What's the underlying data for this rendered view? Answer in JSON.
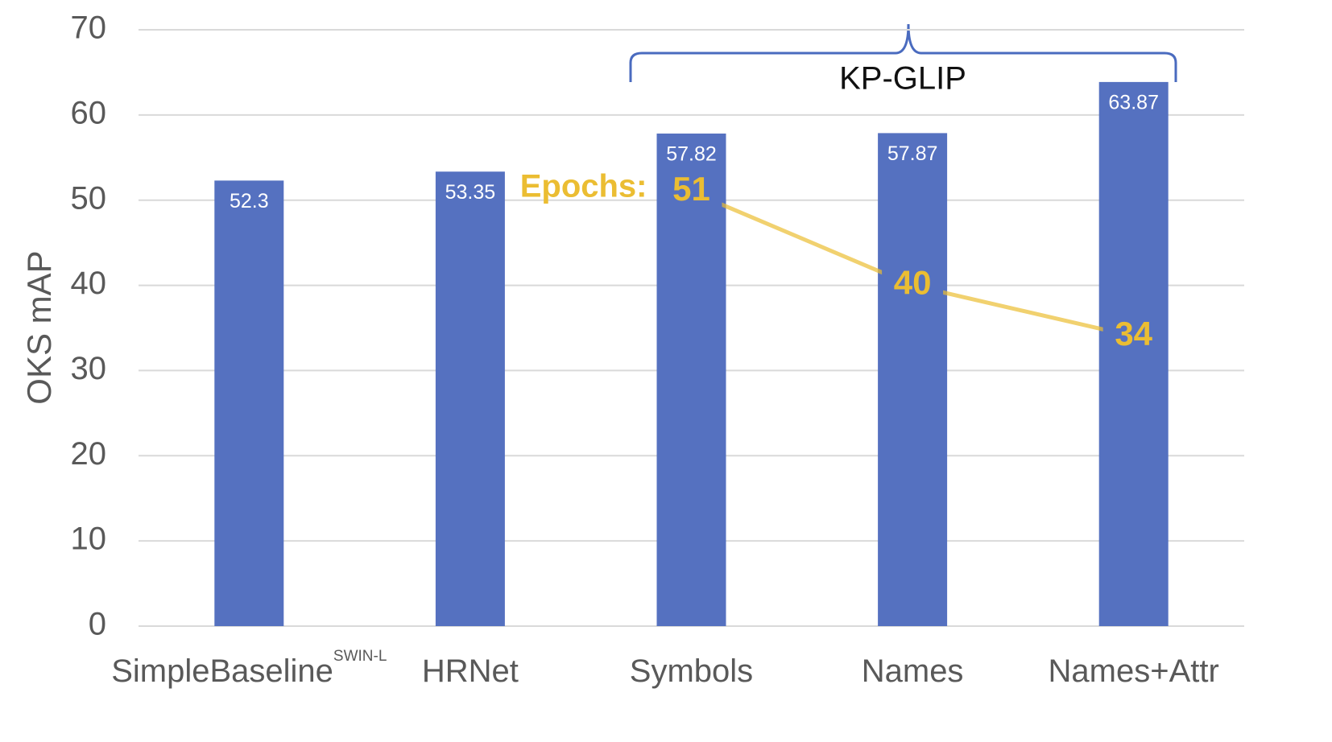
{
  "chart_data": {
    "type": "bar",
    "y_label": "OKS mAP",
    "categories": [
      "SimpleBaseline",
      "HRNet",
      "Symbols",
      "Names",
      "Names+Attr"
    ],
    "category_superscripts": [
      "SWIN-L",
      null,
      null,
      null,
      null
    ],
    "values": [
      52.3,
      53.35,
      57.82,
      57.87,
      63.87
    ],
    "color": "#5571c0",
    "ylim": [
      0,
      70
    ],
    "yticks": [
      0,
      10,
      20,
      30,
      40,
      50,
      60,
      70
    ],
    "grid": true,
    "overlay": {
      "type": "line",
      "name": "Epochs:",
      "color": "#ebbd32",
      "values": [
        null,
        null,
        51,
        40,
        34
      ]
    },
    "annotation": {
      "text": "KP-GLIP",
      "from": 2,
      "to": 4
    }
  }
}
